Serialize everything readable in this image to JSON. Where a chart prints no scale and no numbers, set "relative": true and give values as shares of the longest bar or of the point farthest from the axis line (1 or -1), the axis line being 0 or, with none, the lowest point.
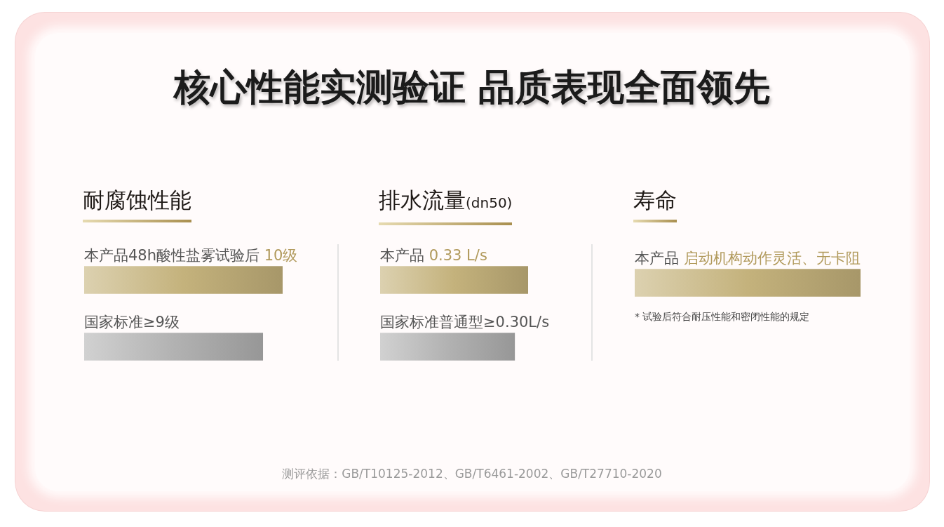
{
  "chart_data": [
    {
      "type": "other",
      "title": "核心性能实测验证 品质表现全面领先"
    },
    {
      "type": "bar",
      "orientation": "horizontal",
      "title": "耐腐蚀性能",
      "categories": [
        "本产品48h酸性盐雾试验后",
        "国家标准≥9级"
      ],
      "values": [
        10,
        9
      ],
      "colors": [
        "#c4b27c",
        "#b2b2b2"
      ],
      "value_labels": [
        "10级",
        null
      ],
      "tick_labels": "y"
    },
    {
      "type": "bar",
      "orientation": "horizontal",
      "title": "排水流量(dn50)",
      "categories": [
        "本产品",
        "国家标准普通型≥0.30L/s"
      ],
      "values": [
        0.33,
        0.3
      ],
      "colors": [
        "#c4b27c",
        "#b2b2b2"
      ],
      "value_labels": [
        "0.33 L/s",
        null
      ],
      "tick_labels": "y"
    },
    {
      "type": "bar",
      "orientation": "horizontal",
      "relative": true,
      "title": "寿命",
      "categories": [
        "本产品 启动机构动作灵活、无卡阻"
      ],
      "values": [
        1
      ],
      "colors": [
        "#c4b27c"
      ],
      "annotations": [
        "* 试验后符合耐压性能和密闭性能的规定"
      ]
    },
    {
      "type": "other",
      "annotations": [
        "测评依据：GB/T10125-2012、GB/T6461-2002、GB/T27710-2020"
      ]
    }
  ]
}
